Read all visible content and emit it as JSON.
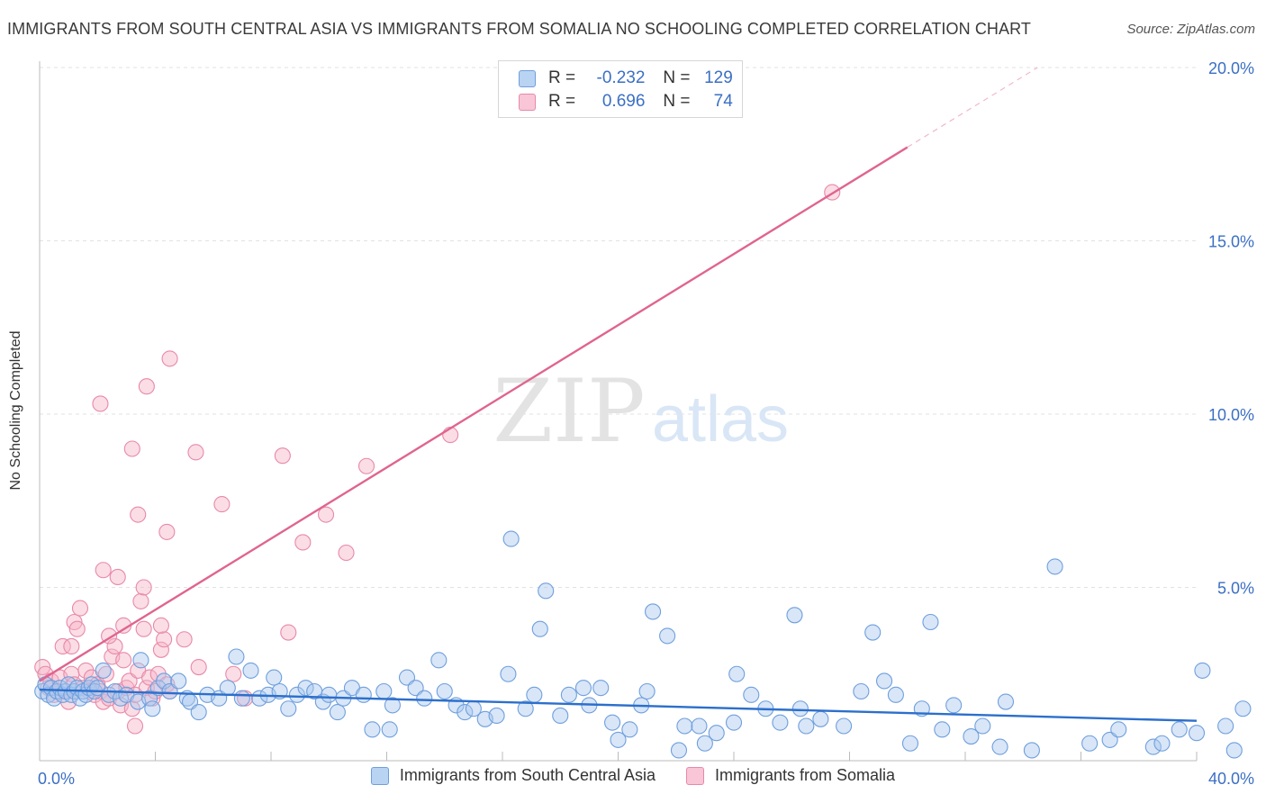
{
  "header": {
    "title": "IMMIGRANTS FROM SOUTH CENTRAL ASIA VS IMMIGRANTS FROM SOMALIA NO SCHOOLING COMPLETED CORRELATION CHART",
    "source": "Source: ZipAtlas.com"
  },
  "watermark": {
    "zip": "ZIP",
    "atlas": "atlas"
  },
  "legend": {
    "r_label": "R =",
    "n_label": "N =",
    "entries": [
      {
        "r": "-0.232",
        "n": "129"
      },
      {
        "r": "0.696",
        "n": "74"
      }
    ]
  },
  "colors": {
    "blue_fill": "#a9c8f0",
    "blue_stroke": "#6f9fdc",
    "blue_line": "#2c6fcc",
    "pink_fill": "#f6b3c8",
    "pink_stroke": "#e889a8",
    "pink_line": "#e0648e",
    "tick_label": "#3b6fc4",
    "grid": "#e2e2e2"
  },
  "chart_data": {
    "type": "scatter",
    "title": "IMMIGRANTS FROM SOUTH CENTRAL ASIA VS IMMIGRANTS FROM SOMALIA NO SCHOOLING COMPLETED CORRELATION CHART",
    "xlabel": "",
    "ylabel": "No Schooling Completed",
    "xlim": [
      0,
      40
    ],
    "ylim": [
      0,
      20
    ],
    "x_tick_labels": [
      "0.0%",
      "40.0%"
    ],
    "y_ticks": [
      5,
      10,
      15,
      20
    ],
    "y_tick_labels": [
      "5.0%",
      "10.0%",
      "15.0%",
      "20.0%"
    ],
    "grid": true,
    "legend_placement": "bottom",
    "series": [
      {
        "name": "Immigrants from South Central Asia",
        "r": -0.232,
        "n": 129,
        "trend": {
          "x0": 0,
          "y0": 2.05,
          "x1": 40,
          "y1": 1.15
        },
        "points": [
          [
            0.1,
            2.0
          ],
          [
            0.2,
            2.2
          ],
          [
            0.3,
            1.9
          ],
          [
            0.4,
            2.1
          ],
          [
            0.5,
            1.8
          ],
          [
            0.6,
            2.0
          ],
          [
            0.7,
            2.1
          ],
          [
            0.8,
            1.9
          ],
          [
            0.9,
            2.0
          ],
          [
            1.0,
            2.2
          ],
          [
            1.1,
            1.9
          ],
          [
            1.2,
            2.0
          ],
          [
            1.3,
            2.1
          ],
          [
            1.4,
            1.8
          ],
          [
            1.5,
            2.0
          ],
          [
            1.6,
            1.9
          ],
          [
            1.7,
            2.1
          ],
          [
            1.8,
            2.2
          ],
          [
            1.9,
            2.0
          ],
          [
            2.0,
            2.1
          ],
          [
            2.2,
            2.6
          ],
          [
            2.4,
            1.9
          ],
          [
            2.6,
            2.0
          ],
          [
            2.8,
            1.8
          ],
          [
            3.0,
            1.9
          ],
          [
            3.4,
            1.7
          ],
          [
            3.5,
            2.9
          ],
          [
            3.8,
            1.8
          ],
          [
            3.9,
            1.5
          ],
          [
            4.1,
            2.1
          ],
          [
            4.3,
            2.3
          ],
          [
            4.5,
            2.0
          ],
          [
            4.8,
            2.3
          ],
          [
            5.1,
            1.8
          ],
          [
            5.2,
            1.7
          ],
          [
            5.5,
            1.4
          ],
          [
            5.8,
            1.9
          ],
          [
            6.2,
            1.8
          ],
          [
            6.5,
            2.1
          ],
          [
            6.8,
            3.0
          ],
          [
            7.0,
            1.8
          ],
          [
            7.3,
            2.6
          ],
          [
            7.6,
            1.8
          ],
          [
            7.9,
            1.9
          ],
          [
            8.1,
            2.4
          ],
          [
            8.3,
            2.0
          ],
          [
            8.6,
            1.5
          ],
          [
            8.9,
            1.9
          ],
          [
            9.2,
            2.1
          ],
          [
            9.5,
            2.0
          ],
          [
            9.8,
            1.7
          ],
          [
            10.0,
            1.9
          ],
          [
            10.3,
            1.4
          ],
          [
            10.5,
            1.8
          ],
          [
            10.8,
            2.1
          ],
          [
            11.2,
            1.9
          ],
          [
            11.5,
            0.9
          ],
          [
            11.9,
            2.0
          ],
          [
            12.1,
            0.9
          ],
          [
            12.2,
            1.6
          ],
          [
            12.7,
            2.4
          ],
          [
            13.0,
            2.1
          ],
          [
            13.3,
            1.8
          ],
          [
            13.8,
            2.9
          ],
          [
            14.0,
            2.0
          ],
          [
            14.4,
            1.6
          ],
          [
            14.7,
            1.4
          ],
          [
            15.0,
            1.5
          ],
          [
            15.4,
            1.2
          ],
          [
            15.8,
            1.3
          ],
          [
            16.2,
            2.5
          ],
          [
            16.3,
            6.4
          ],
          [
            16.8,
            1.5
          ],
          [
            17.1,
            1.9
          ],
          [
            17.3,
            3.8
          ],
          [
            17.5,
            4.9
          ],
          [
            18.0,
            1.3
          ],
          [
            18.3,
            1.9
          ],
          [
            18.8,
            2.1
          ],
          [
            19.0,
            1.6
          ],
          [
            19.4,
            2.1
          ],
          [
            19.8,
            1.1
          ],
          [
            20.0,
            0.6
          ],
          [
            20.4,
            0.9
          ],
          [
            20.8,
            1.6
          ],
          [
            21.0,
            2.0
          ],
          [
            21.2,
            4.3
          ],
          [
            21.7,
            3.6
          ],
          [
            22.1,
            0.3
          ],
          [
            22.3,
            1.0
          ],
          [
            22.8,
            1.0
          ],
          [
            23.0,
            0.5
          ],
          [
            23.4,
            0.8
          ],
          [
            24.0,
            1.1
          ],
          [
            24.1,
            2.5
          ],
          [
            24.6,
            1.9
          ],
          [
            25.1,
            1.5
          ],
          [
            25.6,
            1.1
          ],
          [
            26.1,
            4.2
          ],
          [
            26.3,
            1.5
          ],
          [
            26.5,
            1.0
          ],
          [
            27.0,
            1.2
          ],
          [
            27.8,
            1.0
          ],
          [
            28.4,
            2.0
          ],
          [
            28.8,
            3.7
          ],
          [
            29.2,
            2.3
          ],
          [
            29.6,
            1.9
          ],
          [
            30.1,
            0.5
          ],
          [
            30.5,
            1.5
          ],
          [
            30.8,
            4.0
          ],
          [
            31.2,
            0.9
          ],
          [
            31.6,
            1.6
          ],
          [
            32.2,
            0.7
          ],
          [
            32.6,
            1.0
          ],
          [
            33.2,
            0.4
          ],
          [
            33.4,
            1.7
          ],
          [
            34.3,
            0.3
          ],
          [
            35.1,
            5.6
          ],
          [
            36.3,
            0.5
          ],
          [
            37.0,
            0.6
          ],
          [
            37.3,
            0.9
          ],
          [
            38.5,
            0.4
          ],
          [
            38.8,
            0.5
          ],
          [
            39.4,
            0.9
          ],
          [
            40.0,
            0.8
          ],
          [
            40.2,
            2.6
          ],
          [
            41.0,
            1.0
          ],
          [
            41.3,
            0.3
          ],
          [
            41.6,
            1.5
          ]
        ]
      },
      {
        "name": "Immigrants from Somalia",
        "r": 0.696,
        "n": 74,
        "trend": {
          "x0": 0,
          "y0": 2.3,
          "x1": 30,
          "y1": 17.7
        },
        "trend_dashed": {
          "x0": 30,
          "y0": 17.7,
          "x1": 34.5,
          "y1": 20.0
        },
        "points": [
          [
            0.1,
            2.7
          ],
          [
            0.2,
            2.5
          ],
          [
            0.3,
            2.1
          ],
          [
            0.4,
            2.3
          ],
          [
            0.5,
            1.9
          ],
          [
            0.6,
            2.0
          ],
          [
            0.7,
            2.4
          ],
          [
            0.8,
            3.3
          ],
          [
            0.9,
            2.0
          ],
          [
            1.0,
            1.7
          ],
          [
            1.1,
            2.5
          ],
          [
            1.2,
            2.2
          ],
          [
            1.1,
            3.3
          ],
          [
            1.2,
            4.0
          ],
          [
            1.3,
            3.8
          ],
          [
            1.4,
            4.4
          ],
          [
            1.5,
            2.1
          ],
          [
            1.6,
            2.6
          ],
          [
            1.7,
            2.0
          ],
          [
            1.8,
            2.4
          ],
          [
            1.9,
            1.9
          ],
          [
            2.0,
            2.2
          ],
          [
            2.1,
            2.0
          ],
          [
            2.2,
            1.7
          ],
          [
            2.3,
            2.5
          ],
          [
            2.4,
            1.8
          ],
          [
            2.5,
            3.0
          ],
          [
            2.6,
            3.3
          ],
          [
            2.7,
            2.0
          ],
          [
            2.8,
            1.6
          ],
          [
            2.9,
            2.9
          ],
          [
            3.0,
            2.1
          ],
          [
            3.1,
            2.3
          ],
          [
            3.2,
            1.5
          ],
          [
            3.3,
            1.9
          ],
          [
            3.4,
            2.6
          ],
          [
            3.6,
            3.8
          ],
          [
            3.7,
            2.1
          ],
          [
            3.8,
            2.4
          ],
          [
            3.9,
            1.8
          ],
          [
            4.0,
            2.0
          ],
          [
            4.1,
            2.5
          ],
          [
            4.2,
            3.2
          ],
          [
            4.3,
            3.5
          ],
          [
            4.4,
            2.2
          ],
          [
            4.5,
            2.0
          ],
          [
            2.1,
            10.3
          ],
          [
            2.2,
            5.5
          ],
          [
            2.4,
            3.6
          ],
          [
            2.7,
            5.3
          ],
          [
            2.9,
            3.9
          ],
          [
            3.2,
            9.0
          ],
          [
            3.4,
            7.1
          ],
          [
            3.5,
            4.6
          ],
          [
            3.6,
            5.0
          ],
          [
            3.7,
            10.8
          ],
          [
            4.2,
            3.9
          ],
          [
            4.4,
            6.6
          ],
          [
            4.5,
            11.6
          ],
          [
            5.4,
            8.9
          ],
          [
            5.5,
            2.7
          ],
          [
            6.3,
            7.4
          ],
          [
            6.7,
            2.5
          ],
          [
            7.1,
            1.8
          ],
          [
            8.4,
            8.8
          ],
          [
            8.6,
            3.7
          ],
          [
            9.1,
            6.3
          ],
          [
            9.9,
            7.1
          ],
          [
            10.6,
            6.0
          ],
          [
            11.3,
            8.5
          ],
          [
            14.2,
            9.4
          ],
          [
            5.0,
            3.5
          ],
          [
            3.3,
            1.0
          ],
          [
            27.4,
            16.4
          ]
        ]
      }
    ]
  },
  "bottom_legend": [
    {
      "label": "Immigrants from South Central Asia"
    },
    {
      "label": "Immigrants from Somalia"
    }
  ]
}
